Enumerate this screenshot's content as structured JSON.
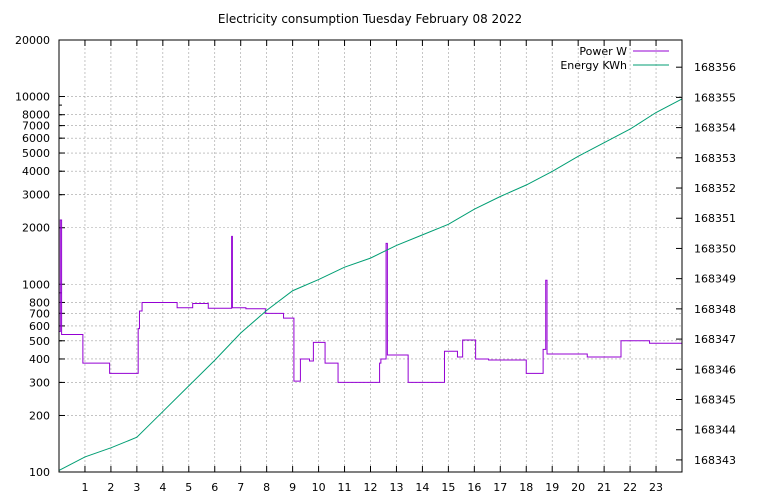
{
  "chart_data": {
    "type": "line",
    "title": "Electricity consumption Tuesday February 08 2022",
    "x_ticks": [
      "1",
      "2",
      "3",
      "4",
      "5",
      "6",
      "7",
      "8",
      "9",
      "10",
      "11",
      "12",
      "13",
      "14",
      "15",
      "16",
      "17",
      "18",
      "19",
      "20",
      "21",
      "22",
      "23"
    ],
    "x_range": [
      0,
      24
    ],
    "y_left": {
      "scale": "log",
      "range": [
        100,
        20000
      ],
      "ticks": [
        "100",
        "200",
        "300",
        "400",
        "500",
        "600",
        "700",
        "800",
        "1000",
        "2000",
        "3000",
        "4000",
        "5000",
        "6000",
        "7000",
        "8000",
        "10000",
        "20000"
      ]
    },
    "y_right": {
      "scale": "linear",
      "range": [
        168342.6,
        168356.9
      ],
      "ticks": [
        "168343",
        "168344",
        "168345",
        "168346",
        "168347",
        "168348",
        "168349",
        "168350",
        "168351",
        "168352",
        "168353",
        "168354",
        "168355",
        "168356"
      ]
    },
    "grid": true,
    "legend_position": "top-right",
    "series": [
      {
        "name": "Power W",
        "axis": "left",
        "color": "#9400d3",
        "step": true,
        "points": [
          [
            0.0,
            560
          ],
          [
            0.05,
            2200
          ],
          [
            0.1,
            540
          ],
          [
            0.9,
            540
          ],
          [
            0.92,
            380
          ],
          [
            1.9,
            380
          ],
          [
            1.95,
            335
          ],
          [
            3.0,
            335
          ],
          [
            3.05,
            580
          ],
          [
            3.1,
            720
          ],
          [
            3.2,
            800
          ],
          [
            4.5,
            800
          ],
          [
            4.55,
            750
          ],
          [
            5.1,
            750
          ],
          [
            5.15,
            790
          ],
          [
            5.7,
            790
          ],
          [
            5.75,
            745
          ],
          [
            6.6,
            745
          ],
          [
            6.65,
            1800
          ],
          [
            6.68,
            750
          ],
          [
            7.2,
            740
          ],
          [
            7.9,
            740
          ],
          [
            7.95,
            700
          ],
          [
            8.6,
            700
          ],
          [
            8.65,
            660
          ],
          [
            9.0,
            660
          ],
          [
            9.05,
            305
          ],
          [
            9.25,
            305
          ],
          [
            9.3,
            400
          ],
          [
            9.6,
            400
          ],
          [
            9.65,
            390
          ],
          [
            9.75,
            390
          ],
          [
            9.8,
            490
          ],
          [
            10.2,
            490
          ],
          [
            10.25,
            380
          ],
          [
            10.7,
            380
          ],
          [
            10.75,
            300
          ],
          [
            12.3,
            300
          ],
          [
            12.35,
            380
          ],
          [
            12.4,
            400
          ],
          [
            12.6,
            1650
          ],
          [
            12.65,
            420
          ],
          [
            13.4,
            420
          ],
          [
            13.45,
            300
          ],
          [
            14.8,
            300
          ],
          [
            14.85,
            440
          ],
          [
            15.3,
            440
          ],
          [
            15.35,
            410
          ],
          [
            15.5,
            410
          ],
          [
            15.55,
            505
          ],
          [
            16.0,
            505
          ],
          [
            16.05,
            400
          ],
          [
            16.5,
            400
          ],
          [
            16.55,
            395
          ],
          [
            17.95,
            395
          ],
          [
            18.0,
            335
          ],
          [
            18.6,
            335
          ],
          [
            18.65,
            450
          ],
          [
            18.75,
            1050
          ],
          [
            18.8,
            425
          ],
          [
            20.3,
            425
          ],
          [
            20.35,
            410
          ],
          [
            21.6,
            410
          ],
          [
            21.65,
            500
          ],
          [
            22.7,
            500
          ],
          [
            22.75,
            485
          ],
          [
            23.95,
            485
          ],
          [
            24.0,
            410
          ]
        ]
      },
      {
        "name": "Energy KWh",
        "axis": "right",
        "color": "#009e73",
        "step": false,
        "points": [
          [
            0.0,
            168342.65
          ],
          [
            1.0,
            168343.1
          ],
          [
            2.0,
            168343.4
          ],
          [
            3.0,
            168343.75
          ],
          [
            4.0,
            168344.6
          ],
          [
            5.0,
            168345.45
          ],
          [
            6.0,
            168346.3
          ],
          [
            7.0,
            168347.2
          ],
          [
            8.0,
            168347.95
          ],
          [
            9.0,
            168348.6
          ],
          [
            10.0,
            168348.97
          ],
          [
            11.0,
            168349.38
          ],
          [
            12.0,
            168349.68
          ],
          [
            13.0,
            168350.1
          ],
          [
            14.0,
            168350.45
          ],
          [
            15.0,
            168350.8
          ],
          [
            16.0,
            168351.3
          ],
          [
            17.0,
            168351.72
          ],
          [
            18.0,
            168352.1
          ],
          [
            19.0,
            168352.55
          ],
          [
            20.0,
            168353.05
          ],
          [
            21.0,
            168353.5
          ],
          [
            22.0,
            168353.95
          ],
          [
            23.0,
            168354.5
          ],
          [
            24.0,
            168354.95
          ]
        ]
      }
    ]
  }
}
